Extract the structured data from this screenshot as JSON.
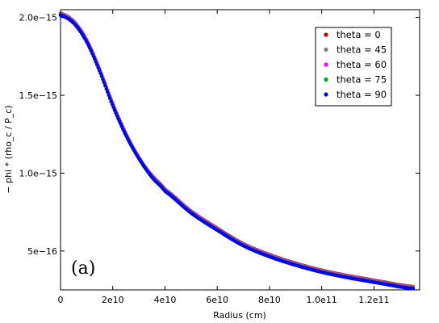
{
  "chart_data": {
    "type": "scatter",
    "panel_label": "(a)",
    "xlabel": "Radius (cm)",
    "ylabel": "− phi * (rho_c / P_c)",
    "xlim": [
      0,
      137500000000.0
    ],
    "ylim": [
      2.5e-16,
      2.05e-15
    ],
    "x_ticks": [
      {
        "value": 0,
        "label": "0"
      },
      {
        "value": 20000000000.0,
        "label": "2e10"
      },
      {
        "value": 40000000000.0,
        "label": "4e10"
      },
      {
        "value": 60000000000.0,
        "label": "6e10"
      },
      {
        "value": 80000000000.0,
        "label": "8e10"
      },
      {
        "value": 100000000000.0,
        "label": "1.0e11"
      },
      {
        "value": 120000000000.0,
        "label": "1.2e11"
      }
    ],
    "y_ticks": [
      {
        "value": 5e-16,
        "label": "5e−16"
      },
      {
        "value": 1e-15,
        "label": "1.0e−15"
      },
      {
        "value": 1.5e-15,
        "label": "1.5e−15"
      },
      {
        "value": 2e-15,
        "label": "2.0e−15"
      }
    ],
    "legend_position": "top-right",
    "grid": false,
    "x": [
      0,
      5000000000.0,
      10000000000.0,
      15000000000.0,
      20000000000.0,
      25000000000.0,
      30000000000.0,
      35000000000.0,
      40000000000.0,
      50000000000.0,
      60000000000.0,
      70000000000.0,
      80000000000.0,
      90000000000.0,
      100000000000.0,
      110000000000.0,
      120000000000.0,
      135000000000.0
    ],
    "series": [
      {
        "name": "theta = 0",
        "color": "#d00000",
        "values": [
          2.02e-15,
          1.97e-15,
          1.85e-15,
          1.66e-15,
          1.44e-15,
          1.25e-15,
          1.09e-15,
          9.8e-16,
          8.9e-16,
          7.5e-16,
          6.4e-16,
          5.4e-16,
          4.7e-16,
          4.15e-16,
          3.7e-16,
          3.35e-16,
          3.05e-16,
          2.65e-16
        ]
      },
      {
        "name": "theta = 45",
        "color": "#808080",
        "values": [
          2.02e-15,
          1.97e-15,
          1.85e-15,
          1.66e-15,
          1.44e-15,
          1.25e-15,
          1.1e-15,
          9.8e-16,
          8.9e-16,
          7.5e-16,
          6.4e-16,
          5.4e-16,
          4.7e-16,
          4.15e-16,
          3.7e-16,
          3.35e-16,
          3.05e-16,
          2.65e-16
        ]
      },
      {
        "name": "theta = 60",
        "color": "#ff00ff",
        "values": [
          2.02e-15,
          1.97e-15,
          1.85e-15,
          1.66e-15,
          1.44e-15,
          1.25e-15,
          1.1e-15,
          9.8e-16,
          8.9e-16,
          7.5e-16,
          6.4e-16,
          5.4e-16,
          4.7e-16,
          4.15e-16,
          3.7e-16,
          3.35e-16,
          3.05e-16,
          2.65e-16
        ]
      },
      {
        "name": "theta = 75",
        "color": "#00aa00",
        "values": [
          2.02e-15,
          1.97e-15,
          1.85e-15,
          1.66e-15,
          1.44e-15,
          1.25e-15,
          1.1e-15,
          9.8e-16,
          8.9e-16,
          7.5e-16,
          6.4e-16,
          5.4e-16,
          4.7e-16,
          4.15e-16,
          3.7e-16,
          3.35e-16,
          3.05e-16,
          2.65e-16
        ]
      },
      {
        "name": "theta = 90",
        "color": "#0000ff",
        "values": [
          2.02e-15,
          1.97e-15,
          1.85e-15,
          1.66e-15,
          1.44e-15,
          1.25e-15,
          1.1e-15,
          9.8e-16,
          8.9e-16,
          7.5e-16,
          6.4e-16,
          5.4e-16,
          4.7e-16,
          4.15e-16,
          3.7e-16,
          3.35e-16,
          3.05e-16,
          2.65e-16
        ]
      }
    ]
  }
}
